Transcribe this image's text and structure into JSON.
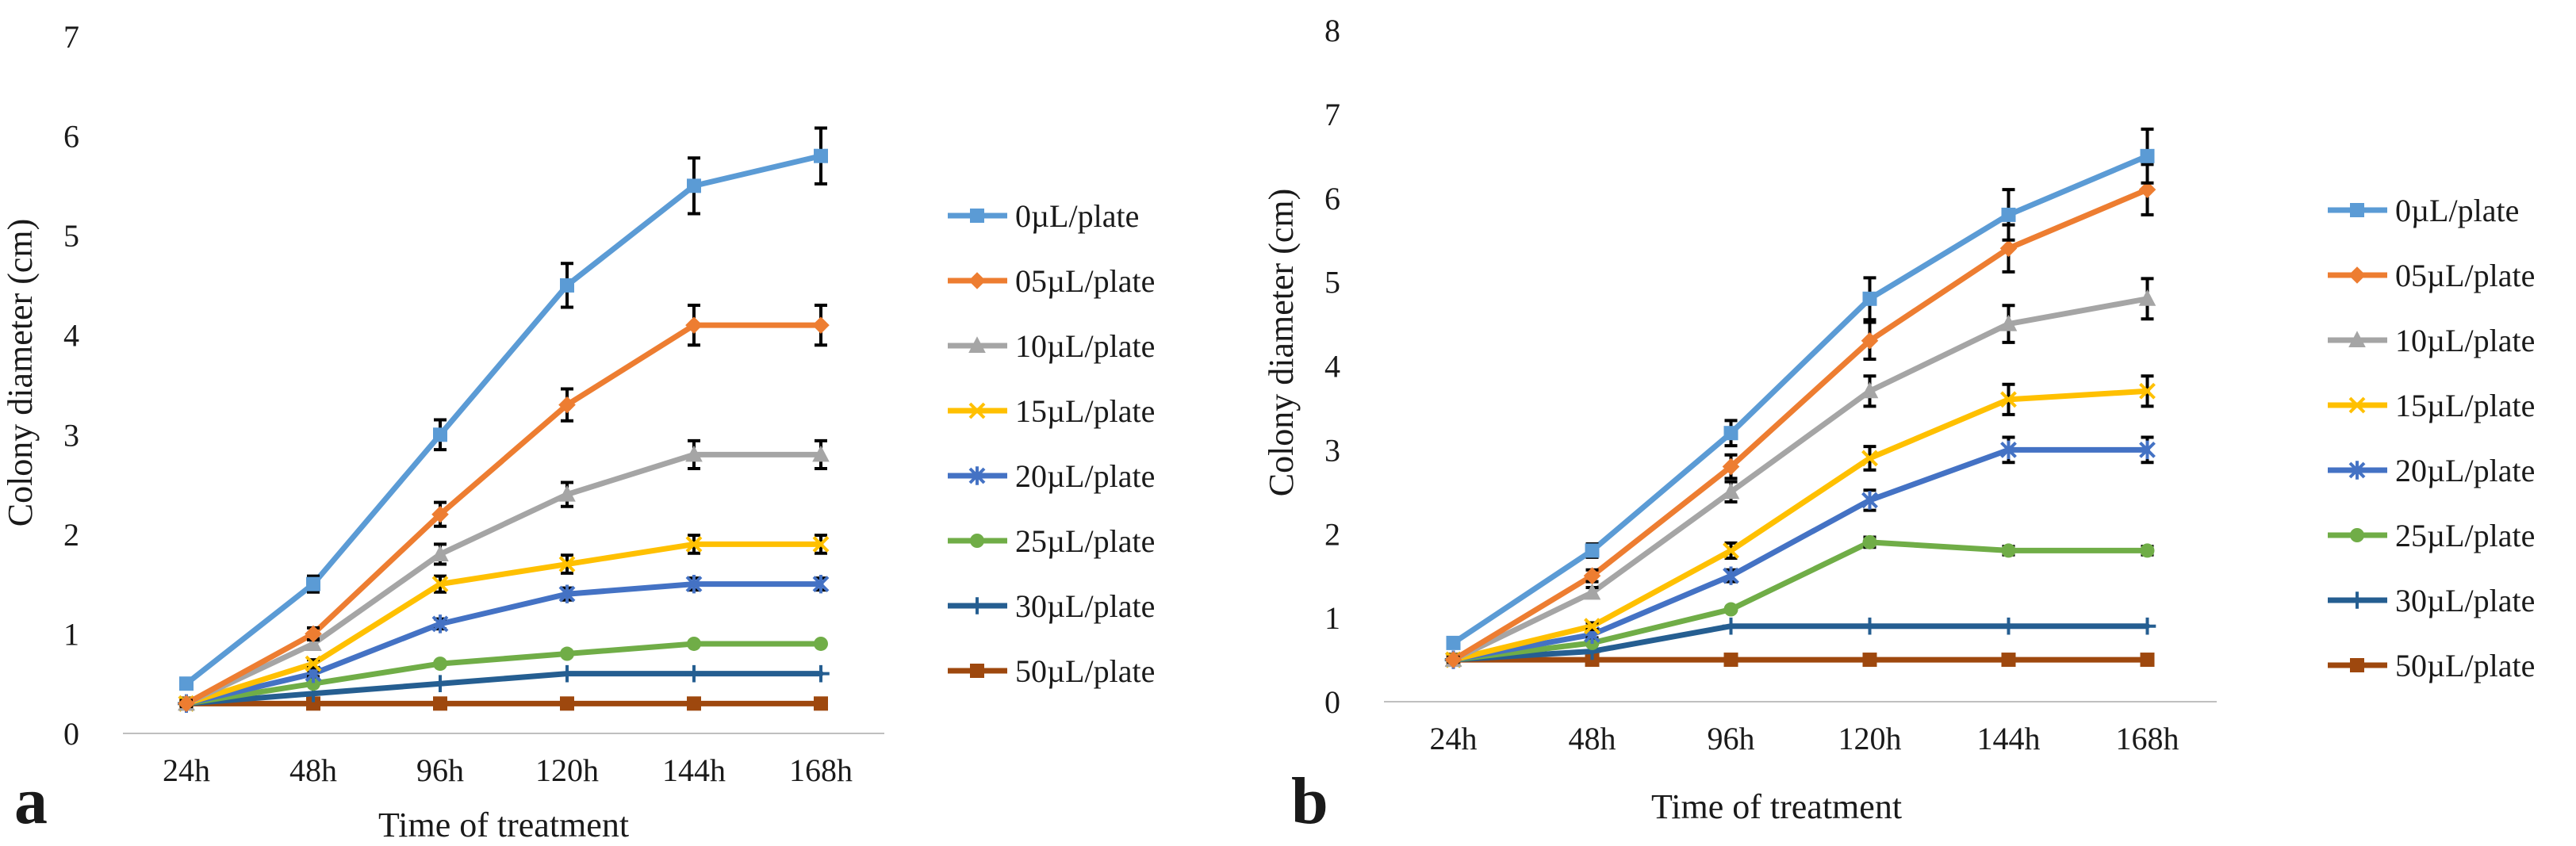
{
  "chart_data": [
    {
      "type": "line",
      "panel_label": "a",
      "xlabel": "Time of treatment",
      "ylabel": "Colony diameter (cm)",
      "categories": [
        "24h",
        "48h",
        "96h",
        "120h",
        "144h",
        "168h"
      ],
      "ylim": [
        0,
        7
      ],
      "yticks": [
        "0",
        "1",
        "2",
        "3",
        "4",
        "5",
        "6",
        "7"
      ],
      "grid": false,
      "legend_position": "right",
      "series": [
        {
          "name": "0µL/plate",
          "color": "#5b9bd5",
          "marker": "square",
          "values": [
            0.5,
            1.5,
            3.0,
            4.5,
            5.5,
            5.8
          ],
          "errors": [
            0.03,
            0.08,
            0.15,
            0.22,
            0.28,
            0.28
          ]
        },
        {
          "name": "05µL/plate",
          "color": "#ed7d31",
          "marker": "diamond",
          "values": [
            0.3,
            1.0,
            2.2,
            3.3,
            4.1,
            4.1
          ],
          "errors": [
            0.03,
            0.06,
            0.12,
            0.16,
            0.2,
            0.2
          ]
        },
        {
          "name": "10µL/plate",
          "color": "#a5a5a5",
          "marker": "triangle",
          "values": [
            0.3,
            0.9,
            1.8,
            2.4,
            2.8,
            2.8
          ],
          "errors": [
            0.02,
            0.05,
            0.1,
            0.12,
            0.14,
            0.14
          ]
        },
        {
          "name": "15µL/plate",
          "color": "#ffc000",
          "marker": "x",
          "values": [
            0.3,
            0.7,
            1.5,
            1.7,
            1.9,
            1.9
          ],
          "errors": [
            0.02,
            0.04,
            0.08,
            0.09,
            0.09,
            0.09
          ]
        },
        {
          "name": "20µL/plate",
          "color": "#4472c4",
          "marker": "star",
          "values": [
            0.3,
            0.6,
            1.1,
            1.4,
            1.5,
            1.5
          ],
          "errors": [
            0.02,
            0.03,
            0.05,
            0.06,
            0.06,
            0.06
          ]
        },
        {
          "name": "25µL/plate",
          "color": "#70ad47",
          "marker": "circle",
          "values": [
            0.3,
            0.5,
            0.7,
            0.8,
            0.9,
            0.9
          ],
          "errors": [
            0,
            0,
            0,
            0,
            0,
            0
          ]
        },
        {
          "name": "30µL/plate",
          "color": "#255e91",
          "marker": "plus",
          "values": [
            0.3,
            0.4,
            0.5,
            0.6,
            0.6,
            0.6
          ],
          "errors": [
            0,
            0,
            0,
            0,
            0,
            0
          ]
        },
        {
          "name": "50µL/plate",
          "color": "#9e480e",
          "marker": "square",
          "values": [
            0.3,
            0.3,
            0.3,
            0.3,
            0.3,
            0.3
          ],
          "errors": [
            0,
            0,
            0,
            0,
            0,
            0
          ]
        }
      ]
    },
    {
      "type": "line",
      "panel_label": "b",
      "xlabel": "Time of treatment",
      "ylabel": "Colony diameter (cm)",
      "categories": [
        "24h",
        "48h",
        "96h",
        "120h",
        "144h",
        "168h"
      ],
      "ylim": [
        0,
        8
      ],
      "yticks": [
        "0",
        "1",
        "2",
        "3",
        "4",
        "5",
        "6",
        "7",
        "8"
      ],
      "grid": false,
      "legend_position": "right",
      "series": [
        {
          "name": "0µL/plate",
          "color": "#5b9bd5",
          "marker": "square",
          "values": [
            0.7,
            1.8,
            3.2,
            4.8,
            5.8,
            6.5
          ],
          "errors": [
            0.03,
            0.08,
            0.15,
            0.25,
            0.3,
            0.32
          ]
        },
        {
          "name": "05µL/plate",
          "color": "#ed7d31",
          "marker": "diamond",
          "values": [
            0.5,
            1.5,
            2.8,
            4.3,
            5.4,
            6.1
          ],
          "errors": [
            0.03,
            0.07,
            0.14,
            0.22,
            0.28,
            0.3
          ]
        },
        {
          "name": "10µL/plate",
          "color": "#a5a5a5",
          "marker": "triangle",
          "values": [
            0.5,
            1.3,
            2.5,
            3.7,
            4.5,
            4.8
          ],
          "errors": [
            0.02,
            0.06,
            0.12,
            0.18,
            0.22,
            0.24
          ]
        },
        {
          "name": "15µL/plate",
          "color": "#ffc000",
          "marker": "x",
          "values": [
            0.5,
            0.9,
            1.8,
            2.9,
            3.6,
            3.7
          ],
          "errors": [
            0.02,
            0.04,
            0.09,
            0.14,
            0.18,
            0.18
          ]
        },
        {
          "name": "20µL/plate",
          "color": "#4472c4",
          "marker": "star",
          "values": [
            0.5,
            0.8,
            1.5,
            2.4,
            3.0,
            3.0
          ],
          "errors": [
            0.02,
            0.04,
            0.07,
            0.12,
            0.15,
            0.15
          ]
        },
        {
          "name": "25µL/plate",
          "color": "#70ad47",
          "marker": "circle",
          "values": [
            0.5,
            0.7,
            1.1,
            1.9,
            1.8,
            1.8
          ],
          "errors": [
            0,
            0,
            0,
            0.06,
            0.05,
            0.05
          ]
        },
        {
          "name": "30µL/plate",
          "color": "#255e91",
          "marker": "plus",
          "values": [
            0.5,
            0.6,
            0.9,
            0.9,
            0.9,
            0.9
          ],
          "errors": [
            0,
            0,
            0,
            0,
            0,
            0
          ]
        },
        {
          "name": "50µL/plate",
          "color": "#9e480e",
          "marker": "square",
          "values": [
            0.5,
            0.5,
            0.5,
            0.5,
            0.5,
            0.5
          ],
          "errors": [
            0,
            0,
            0,
            0,
            0,
            0
          ]
        }
      ]
    }
  ]
}
